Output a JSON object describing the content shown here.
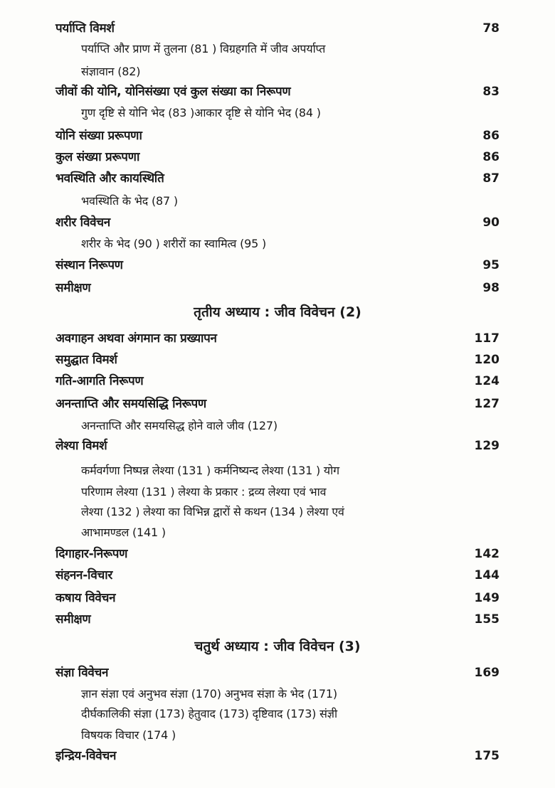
{
  "entries": [
    {
      "title": "पर्याप्ति विमर्श",
      "page": "78",
      "sub": [
        "पर्याप्ति और प्राण में तुलना (81 ) विग्रहगति में जीव अपर्याप्त",
        "संज्ञावान (82)"
      ]
    },
    {
      "title": "जीवों की योनि, योनिसंख्या एवं कुल संख्या का निरूपण",
      "page": "83",
      "sub": [
        "गुण दृष्टि से योनि भेद (83 )आकार दृष्टि से योनि भेद (84 )"
      ]
    },
    {
      "title": "योनि संख्या प्ररूपणा",
      "page": "86",
      "sub": []
    },
    {
      "title": "कुल संख्या प्ररूपणा",
      "page": "86",
      "sub": []
    },
    {
      "title": "भवस्थिति और कायस्थिति",
      "page": "87",
      "sub": [
        "भवस्थिति के भेद (87 )"
      ]
    },
    {
      "title": "शरीर विवेचन",
      "page": "90",
      "sub": [
        "शरीर के भेद (90 ) शरीरों का स्वामित्व (95 )"
      ]
    },
    {
      "title": "संस्थान निरूपण",
      "page": "95",
      "sub": []
    },
    {
      "title": "समीक्षण",
      "page": "98",
      "sub": []
    },
    {
      "chapter": "तृतीय अध्याय :  जीव विवेचन (2)"
    },
    {
      "title": "अवगाहन अथवा अंगमान का प्रख्यापन",
      "page": "117",
      "sub": []
    },
    {
      "title": "समुद्घात विमर्श",
      "page": "120",
      "sub": []
    },
    {
      "title": "गति-आगति निरूपण",
      "page": "124",
      "sub": []
    },
    {
      "title": "अनन्ताप्ति और समयसिद्धि निरूपण",
      "page": "127",
      "sub": [
        "अनन्ताप्ति और समयसिद्ध होने वाले जीव (127)"
      ]
    },
    {
      "title": "लेश्या विमर्श",
      "page": "129",
      "sub": [
        "कर्मवर्गणा निष्पन्न लेश्या (131 ) कर्मनिष्यन्द लेश्या (131 ) योग",
        "परिणाम लेश्या (131 )  लेश्या के प्रकार : द्रव्य लेश्या एवं भाव",
        "लेश्या (132 ) लेश्या का विभिन्न द्वारों से कथन (134 ) लेश्या एवं",
        "आभामण्डल (141 )"
      ]
    },
    {
      "title": "दिगाहार-निरूपण",
      "page": "142",
      "sub": []
    },
    {
      "title": "संहनन-विचार",
      "page": "144",
      "sub": []
    },
    {
      "title": "कषाय विवेचन",
      "page": "149",
      "sub": []
    },
    {
      "title": "समीक्षण",
      "page": "155",
      "sub": []
    },
    {
      "chapter": "चतुर्थ अध्याय :  जीव विवेचन (3)"
    },
    {
      "title": "संज्ञा विवेचन",
      "page": "169",
      "sub": [
        "ज्ञान संज्ञा एवं अनुभव संज्ञा (170) अनुभव संज्ञा के भेद (171)",
        "दीर्घकालिकी संज्ञा (173) हेतुवाद (173) दृष्टिवाद (173) संज्ञी",
        "विषयक विचार (174 )"
      ]
    },
    {
      "title": "इन्द्रिय-विवेचन",
      "page": "175",
      "sub": []
    }
  ]
}
